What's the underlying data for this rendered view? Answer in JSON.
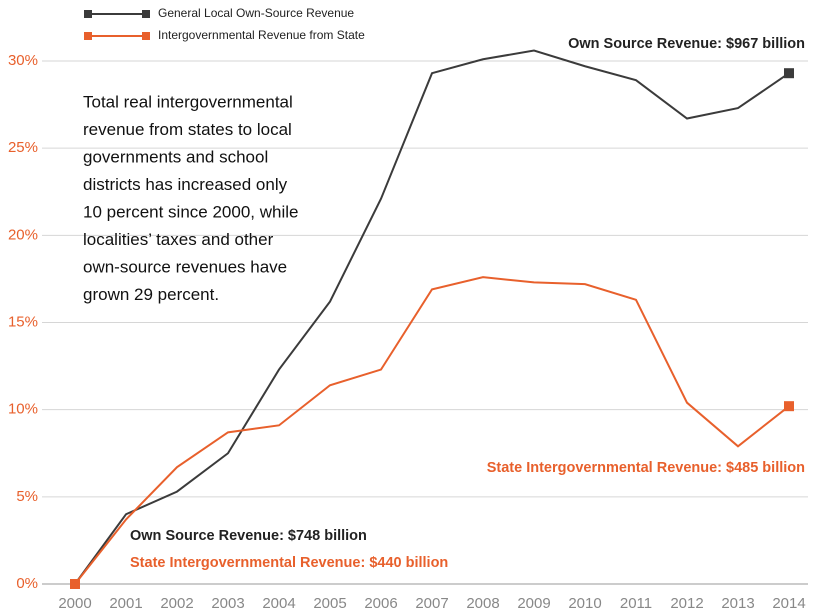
{
  "chart_data": {
    "type": "line",
    "categories": [
      "2000",
      "2001",
      "2002",
      "2003",
      "2004",
      "2005",
      "2006",
      "2007",
      "2008",
      "2009",
      "2010",
      "2011",
      "2012",
      "2013",
      "2014"
    ],
    "series": [
      {
        "name": "General Local Own-Source Revenue",
        "color": "#3b3b3b",
        "values": [
          0,
          4.0,
          5.3,
          7.5,
          12.3,
          16.2,
          22.1,
          29.3,
          30.1,
          30.6,
          29.7,
          28.9,
          26.7,
          27.3,
          29.3
        ]
      },
      {
        "name": "Intergovernmental Revenue from State",
        "color": "#e8602c",
        "values": [
          0,
          3.7,
          6.7,
          8.7,
          9.1,
          11.4,
          12.3,
          16.9,
          17.6,
          17.3,
          17.2,
          16.3,
          10.4,
          7.9,
          10.2
        ]
      }
    ],
    "ylim": [
      0,
      30
    ],
    "yticks": [
      {
        "value": 0,
        "label": "0%"
      },
      {
        "value": 5,
        "label": "5%"
      },
      {
        "value": 10,
        "label": "10%"
      },
      {
        "value": 15,
        "label": "15%"
      },
      {
        "value": 20,
        "label": "20%"
      },
      {
        "value": 25,
        "label": "25%"
      },
      {
        "value": 30,
        "label": "30%"
      }
    ],
    "grid": true,
    "note": [
      "Total real intergovernmental",
      "revenue from states to local",
      "governments and school",
      "districts has increased only",
      "10 percent since 2000, while",
      "localities’ taxes and other",
      "own-source revenues have",
      "grown 29 percent."
    ],
    "annotations": [
      "Own Source Revenue: $967 billion",
      "State Intergovernmental Revenue: $485 billion",
      "Own Source Revenue: $748 billion",
      "State Intergovernmental Revenue: $440 billion"
    ]
  }
}
